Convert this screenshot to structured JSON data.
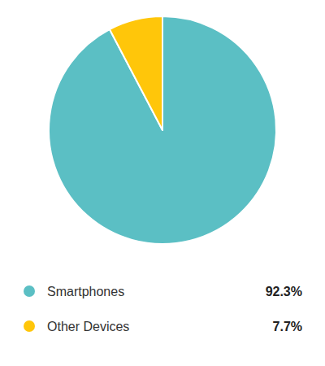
{
  "chart_data": {
    "type": "pie",
    "categories": [
      "Smartphones",
      "Other Devices"
    ],
    "values": [
      92.3,
      7.7
    ],
    "value_labels": [
      "92.3%",
      "7.7%"
    ],
    "colors": [
      "#5bbfc4",
      "#ffc60a"
    ],
    "legend": "bottom"
  }
}
